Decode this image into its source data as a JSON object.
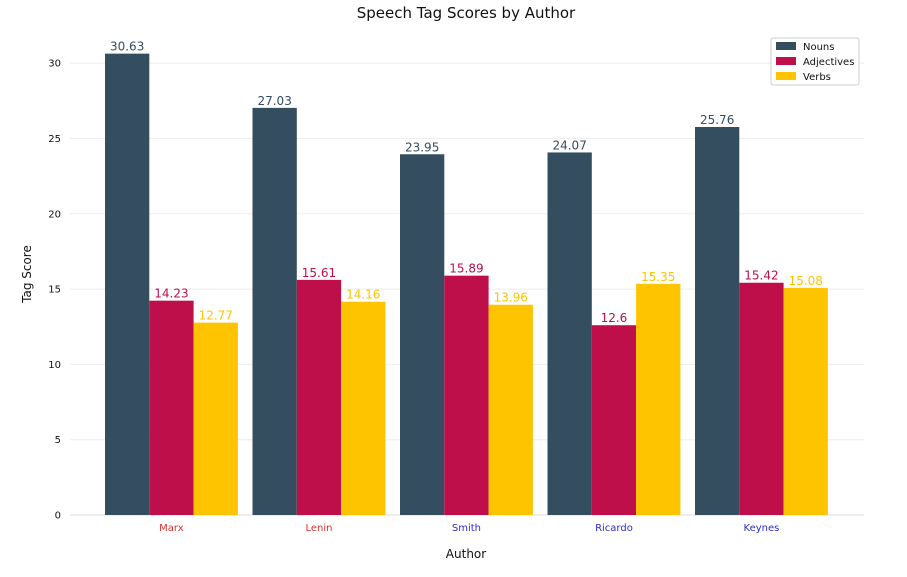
{
  "chart_data": {
    "type": "bar",
    "title": "Speech Tag Scores by Author",
    "xlabel": "Author",
    "ylabel": "Tag Score",
    "categories": [
      "Marx",
      "Lenin",
      "Smith",
      "Ricardo",
      "Keynes"
    ],
    "category_label_colors": [
      "#e03131",
      "#e03131",
      "#2b2bd6",
      "#2b2bd6",
      "#2b2bd6"
    ],
    "series": [
      {
        "name": "Nouns",
        "color": "#344d5f",
        "values": [
          30.63,
          27.03,
          23.95,
          24.07,
          25.76
        ]
      },
      {
        "name": "Adjectives",
        "color": "#be0f4a",
        "values": [
          14.23,
          15.61,
          15.89,
          12.6,
          15.42
        ]
      },
      {
        "name": "Verbs",
        "color": "#ffc400",
        "values": [
          12.77,
          14.16,
          13.96,
          15.35,
          15.08
        ]
      }
    ],
    "ylim": [
      0,
      32.2
    ],
    "yticks": [
      0,
      5,
      10,
      15,
      20,
      25,
      30
    ],
    "grid": true,
    "legend_position": "top-right"
  }
}
